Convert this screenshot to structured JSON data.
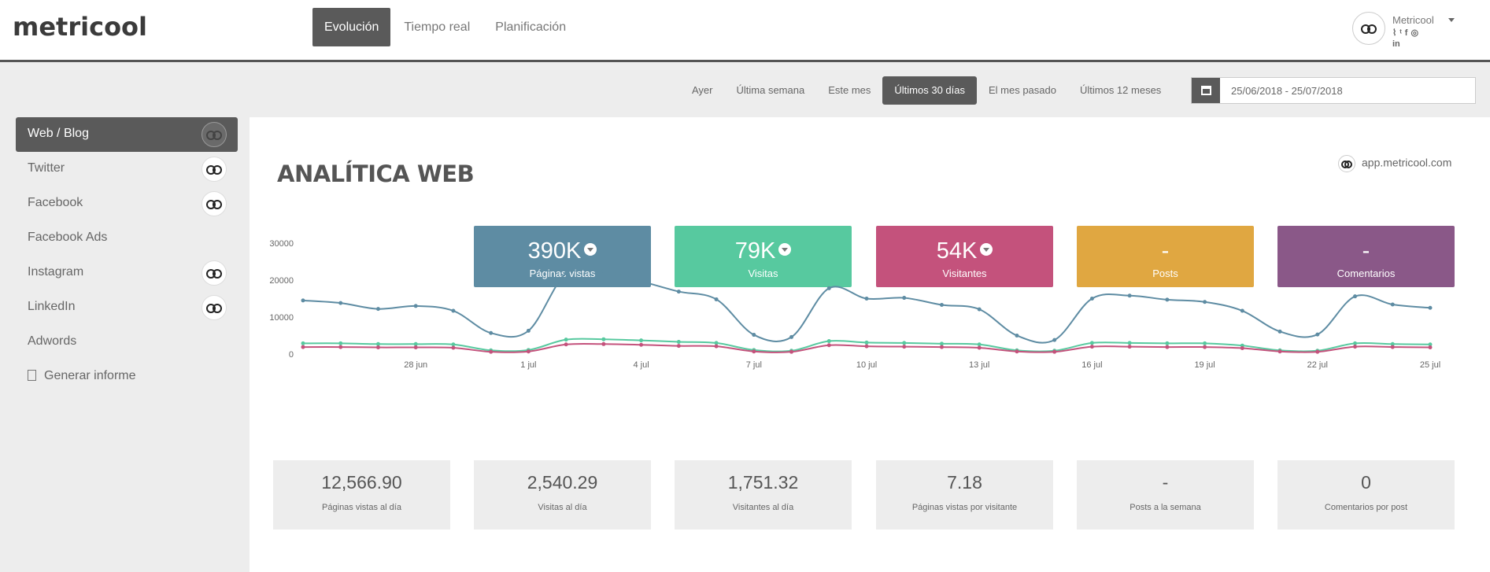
{
  "brand": {
    "logo": "metricool"
  },
  "topnav": {
    "tabs": [
      "Evolución",
      "Tiempo real",
      "Planificación"
    ]
  },
  "account": {
    "name": "Metricool",
    "socials": [
      "rss",
      "twitter",
      "facebook",
      "instagram",
      "linkedin"
    ],
    "social_glyphs": [
      "⌇",
      "ᵗ",
      "f",
      "◎",
      "in"
    ]
  },
  "filters": [
    "Ayer",
    "Última semana",
    "Este mes",
    "Últimos 30 días",
    "El mes pasado",
    "Últimos 12 meses"
  ],
  "daterange": {
    "icon": "calendar-icon",
    "value": "25/06/2018 - 25/07/2018"
  },
  "sidebar": {
    "items": [
      {
        "label": "Web / Blog",
        "avatar": true
      },
      {
        "label": "Twitter",
        "avatar": true
      },
      {
        "label": "Facebook",
        "avatar": true
      },
      {
        "label": "Facebook Ads",
        "avatar": false
      },
      {
        "label": "Instagram",
        "avatar": true
      },
      {
        "label": "LinkedIn",
        "avatar": true
      },
      {
        "label": "Adwords",
        "avatar": false
      }
    ],
    "report": {
      "label": "Generar informe",
      "icon": "pdf-file-icon"
    }
  },
  "main": {
    "title": "ANALÍTICA WEB",
    "site": "app.metricool.com",
    "kpis": [
      {
        "value": "390K",
        "label": "Páginas vistas",
        "color": "#5e8ca3",
        "download": true
      },
      {
        "value": "79K",
        "label": "Visitas",
        "color": "#57c99f",
        "download": true
      },
      {
        "value": "54K",
        "label": "Visitantes",
        "color": "#c4527c",
        "download": true
      },
      {
        "value": "-",
        "label": "Posts",
        "color": "#e0a741",
        "download": false
      },
      {
        "value": "-",
        "label": "Comentarios",
        "color": "#8a5888",
        "download": false
      }
    ],
    "stats": [
      {
        "value": "12,566.90",
        "label": "Páginas vistas al día"
      },
      {
        "value": "2,540.29",
        "label": "Visitas al día"
      },
      {
        "value": "1,751.32",
        "label": "Visitantes al día"
      },
      {
        "value": "7.18",
        "label": "Páginas vistas por visitante"
      },
      {
        "value": "-",
        "label": "Posts a la semana"
      },
      {
        "value": "0",
        "label": "Comentarios por post"
      }
    ]
  },
  "chart_data": {
    "type": "line",
    "x": [
      "25 jun",
      "26 jun",
      "27 jun",
      "28 jun",
      "29 jun",
      "30 jun",
      "1 jul",
      "2 jul",
      "3 jul",
      "4 jul",
      "5 jul",
      "6 jul",
      "7 jul",
      "8 jul",
      "9 jul",
      "10 jul",
      "11 jul",
      "12 jul",
      "13 jul",
      "14 jul",
      "15 jul",
      "16 jul",
      "17 jul",
      "18 jul",
      "19 jul",
      "20 jul",
      "21 jul",
      "22 jul",
      "23 jul",
      "24 jul",
      "25 jul"
    ],
    "xticks": [
      "28 jun",
      "1 jul",
      "4 jul",
      "7 jul",
      "10 jul",
      "13 jul",
      "16 jul",
      "19 jul",
      "22 jul",
      "25 jul"
    ],
    "yticks": [
      0,
      10000,
      20000,
      30000
    ],
    "ylim": [
      0,
      30000
    ],
    "series": [
      {
        "color": "#5e8ca3",
        "values": [
          14500,
          13800,
          12200,
          13000,
          11700,
          5700,
          6300,
          21800,
          22400,
          19700,
          16900,
          14800,
          5200,
          4600,
          17800,
          15000,
          15200,
          13300,
          12100,
          5000,
          3800,
          15000,
          15800,
          14700,
          14100,
          11700,
          6100,
          5300,
          15600,
          13400,
          12500
        ]
      },
      {
        "color": "#57c99f",
        "values": [
          2900,
          2900,
          2700,
          2700,
          2600,
          1000,
          1100,
          3900,
          4000,
          3700,
          3300,
          3000,
          1100,
          900,
          3500,
          3100,
          3000,
          2800,
          2600,
          1000,
          900,
          3000,
          3000,
          2900,
          2900,
          2300,
          1000,
          900,
          2900,
          2700,
          2600
        ]
      },
      {
        "color": "#c4527c",
        "values": [
          1900,
          1900,
          1800,
          1800,
          1700,
          600,
          700,
          2600,
          2700,
          2500,
          2200,
          2100,
          700,
          600,
          2400,
          2100,
          2000,
          1900,
          1700,
          700,
          600,
          2000,
          2000,
          1900,
          1900,
          1600,
          700,
          600,
          2000,
          1900,
          1800
        ]
      }
    ]
  }
}
